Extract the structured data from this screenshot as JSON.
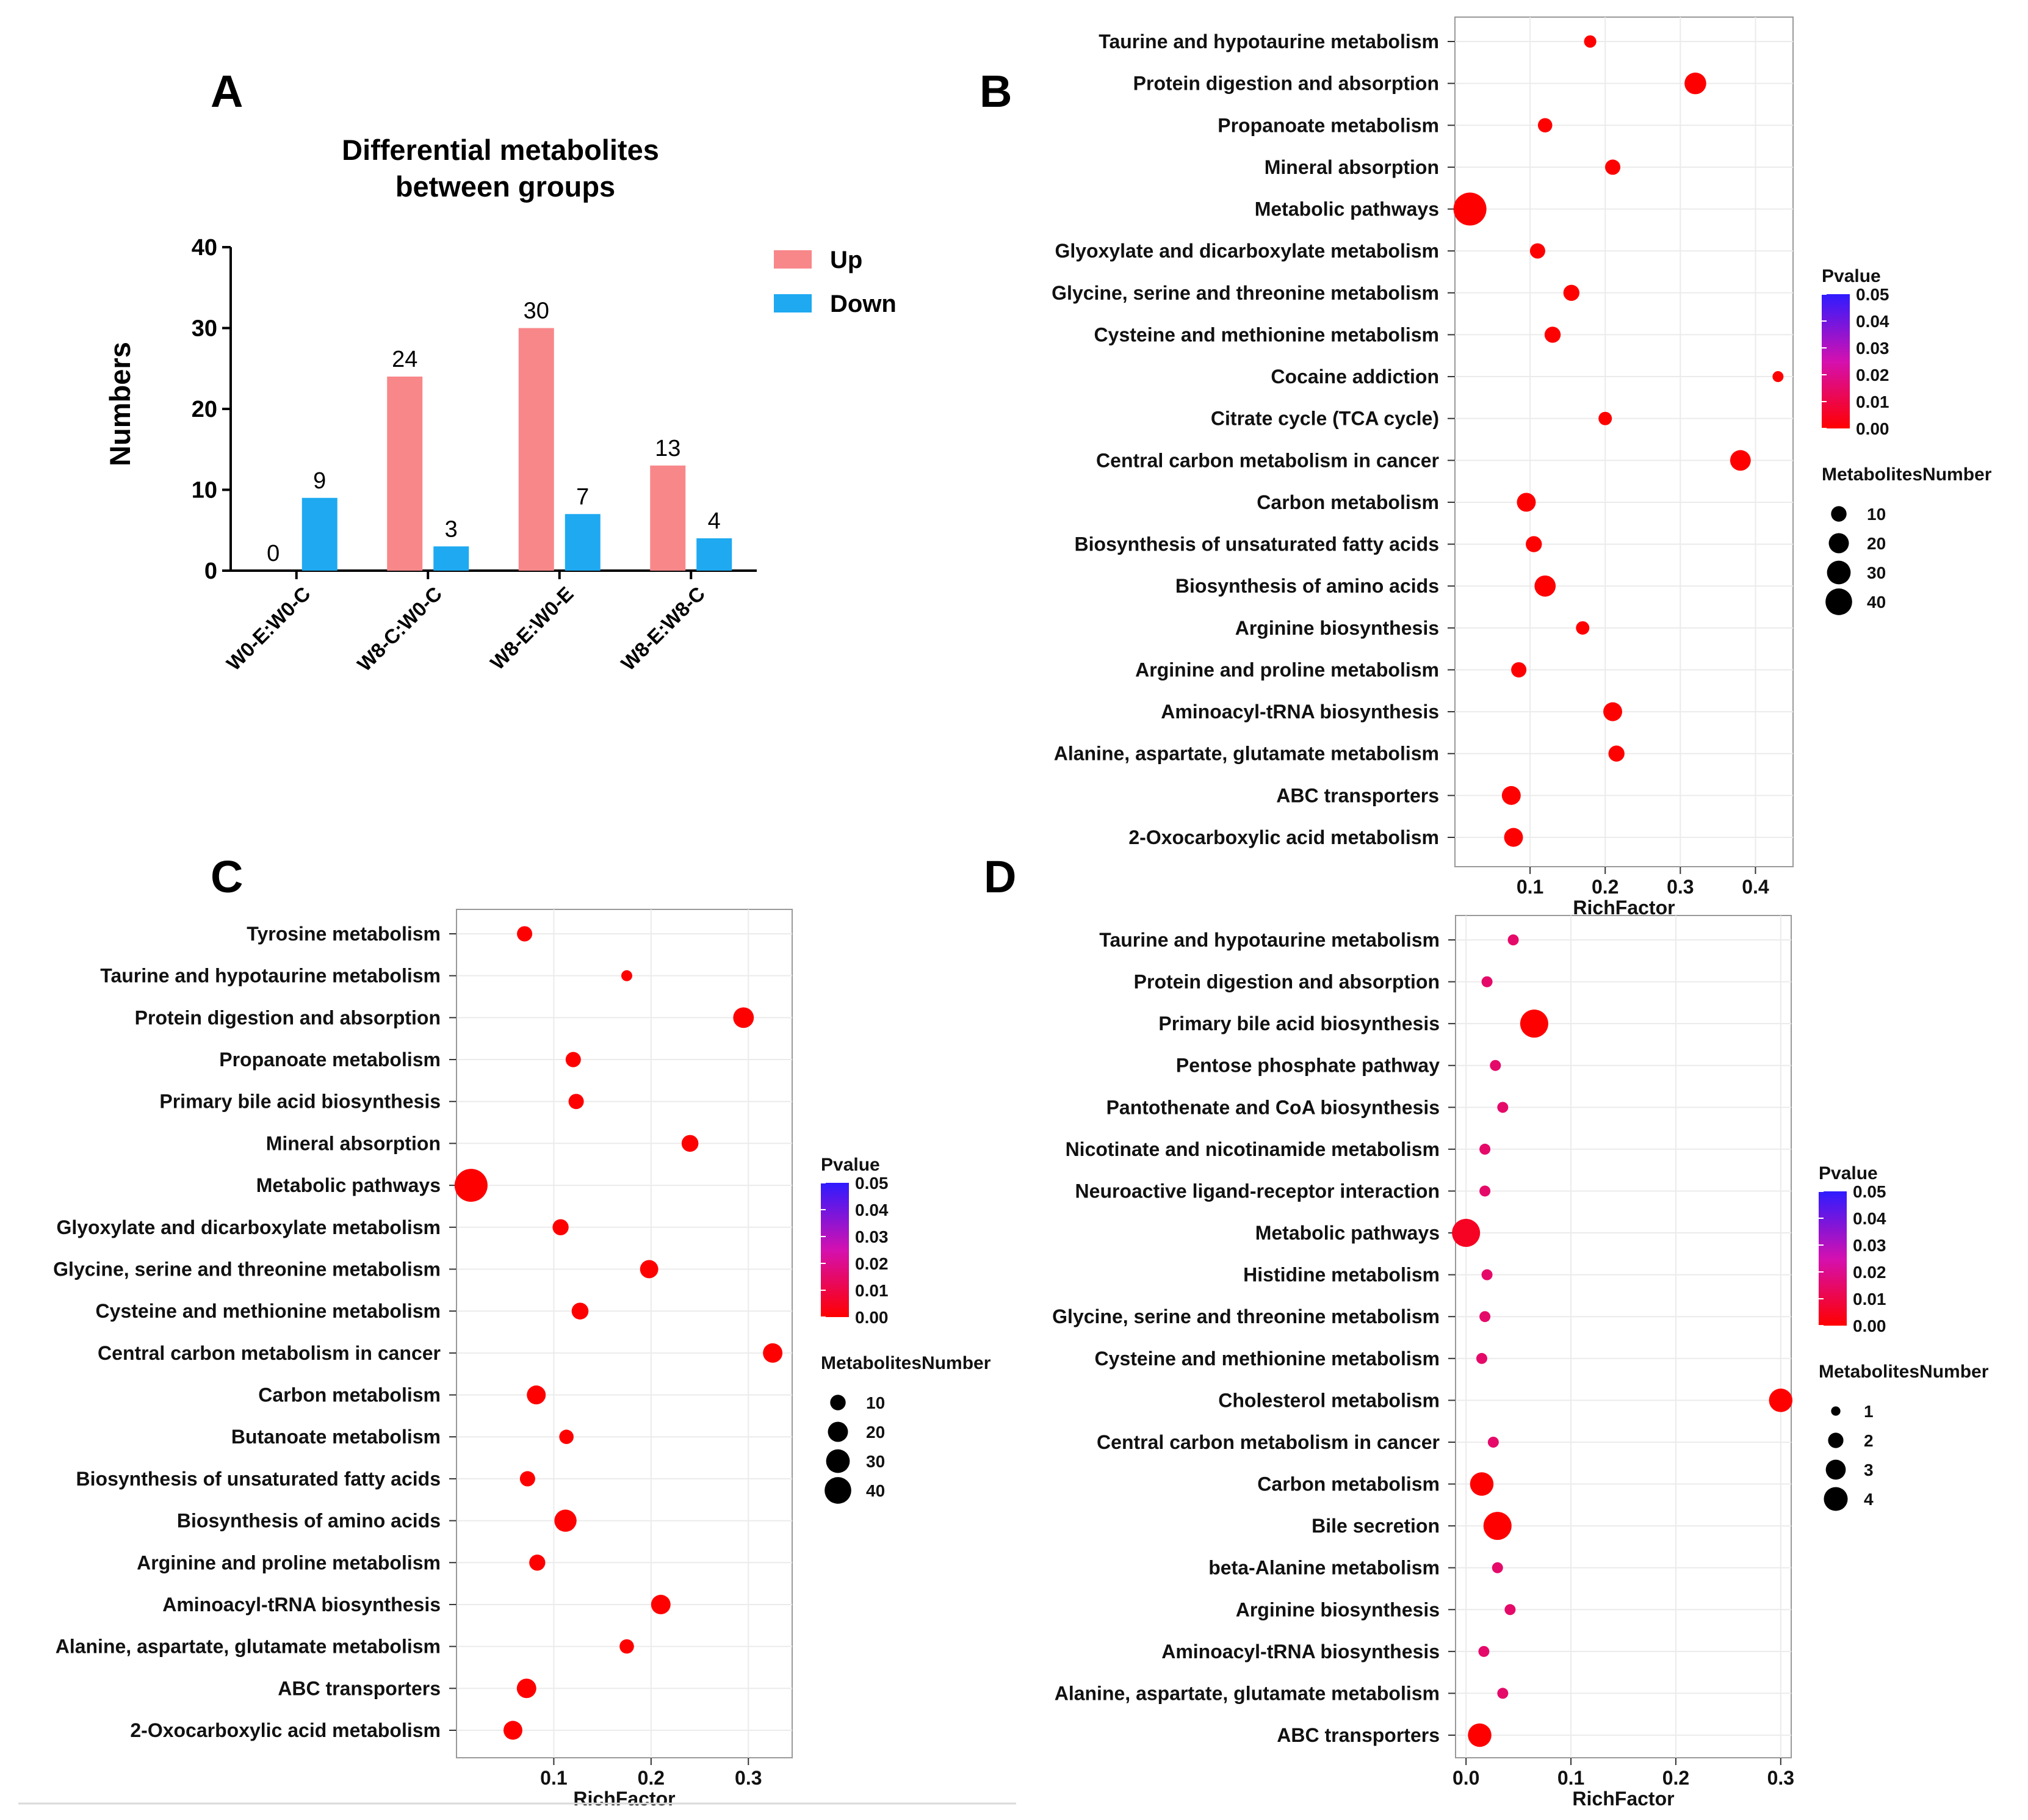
{
  "figure": {
    "panel_labels": [
      "A",
      "B",
      "C",
      "D"
    ],
    "colors": {
      "up": "#F8878A",
      "down": "#1EA9F1",
      "p_low": "#FF0000",
      "p_mid": "#E0149A",
      "p_high": "#2F1BFF",
      "grid": "#EBEBEB",
      "border": "#999999"
    }
  },
  "chart_data": [
    {
      "panel": "A",
      "type": "bar",
      "title_lines": [
        "Differential metabolites",
        "between groups"
      ],
      "ylabel": "Numbers",
      "xlabel": "",
      "ylim": [
        0,
        40
      ],
      "yticks": [
        0,
        10,
        20,
        30,
        40
      ],
      "categories": [
        "W0-E:W0-C",
        "W8-C:W0-C",
        "W8-E:W0-E",
        "W8-E:W8-C"
      ],
      "series": [
        {
          "name": "Up",
          "values": [
            0,
            24,
            30,
            13
          ]
        },
        {
          "name": "Down",
          "values": [
            9,
            3,
            7,
            4
          ]
        }
      ],
      "legend_position": "top-right"
    },
    {
      "panel": "B",
      "type": "scatter",
      "xlabel": "RichFactor",
      "xlim": [
        0,
        0.45
      ],
      "xticks": [
        0.1,
        0.2,
        0.3,
        0.4
      ],
      "xtick_labels": [
        "0.1",
        "0.2",
        "0.3",
        "0.4"
      ],
      "pathways": [
        {
          "name": "Taurine and hypotaurine metabolism",
          "rich": 0.18,
          "count": 3,
          "p": 0.0
        },
        {
          "name": "Protein digestion and absorption",
          "rich": 0.32,
          "count": 16,
          "p": 0.0
        },
        {
          "name": "Propanoate metabolism",
          "rich": 0.12,
          "count": 5,
          "p": 0.0
        },
        {
          "name": "Mineral absorption",
          "rich": 0.21,
          "count": 6,
          "p": 0.0
        },
        {
          "name": "Metabolic pathways",
          "rich": 0.02,
          "count": 45,
          "p": 0.0
        },
        {
          "name": "Glyoxylate and dicarboxylate metabolism",
          "rich": 0.11,
          "count": 6,
          "p": 0.0
        },
        {
          "name": "Glycine, serine and threonine metabolism",
          "rich": 0.155,
          "count": 7,
          "p": 0.0
        },
        {
          "name": "Cysteine and methionine metabolism",
          "rich": 0.13,
          "count": 7,
          "p": 0.0
        },
        {
          "name": "Cocaine addiction",
          "rich": 0.43,
          "count": 2,
          "p": 0.0
        },
        {
          "name": "Citrate cycle (TCA cycle)",
          "rich": 0.2,
          "count": 4,
          "p": 0.0
        },
        {
          "name": "Central carbon metabolism in cancer",
          "rich": 0.38,
          "count": 14,
          "p": 0.0
        },
        {
          "name": "Carbon metabolism",
          "rich": 0.095,
          "count": 11,
          "p": 0.0
        },
        {
          "name": "Biosynthesis of unsaturated fatty acids",
          "rich": 0.105,
          "count": 7,
          "p": 0.0
        },
        {
          "name": "Biosynthesis of amino acids",
          "rich": 0.12,
          "count": 15,
          "p": 0.0
        },
        {
          "name": "Arginine biosynthesis",
          "rich": 0.17,
          "count": 4,
          "p": 0.0
        },
        {
          "name": "Arginine and proline metabolism",
          "rich": 0.085,
          "count": 6,
          "p": 0.0
        },
        {
          "name": "Aminoacyl-tRNA biosynthesis",
          "rich": 0.21,
          "count": 11,
          "p": 0.0
        },
        {
          "name": "Alanine, aspartate, glutamate metabolism",
          "rich": 0.215,
          "count": 7,
          "p": 0.0
        },
        {
          "name": "ABC transporters",
          "rich": 0.075,
          "count": 11,
          "p": 0.0
        },
        {
          "name": "2-Oxocarboxylic acid metabolism",
          "rich": 0.078,
          "count": 11,
          "p": 0.0
        }
      ],
      "color_legend": {
        "title": "Pvalue",
        "ticks": [
          "0.05",
          "0.04",
          "0.03",
          "0.02",
          "0.01",
          "0.00"
        ]
      },
      "size_legend": {
        "title": "MetabolitesNumber",
        "values": [
          10,
          20,
          30,
          40
        ]
      }
    },
    {
      "panel": "C",
      "type": "scatter",
      "xlabel": "RichFactor",
      "xlim": [
        0.0,
        0.345
      ],
      "xticks": [
        0.1,
        0.2,
        0.3
      ],
      "xtick_labels": [
        "0.1",
        "0.2",
        "0.3"
      ],
      "pathways": [
        {
          "name": "Tyrosine metabolism",
          "rich": 0.07,
          "count": 6,
          "p": 0.0
        },
        {
          "name": "Taurine and hypotaurine metabolism",
          "rich": 0.175,
          "count": 2,
          "p": 0.0
        },
        {
          "name": "Protein digestion and absorption",
          "rich": 0.295,
          "count": 14,
          "p": 0.0
        },
        {
          "name": "Propanoate metabolism",
          "rich": 0.12,
          "count": 6,
          "p": 0.0
        },
        {
          "name": "Primary bile acid biosynthesis",
          "rich": 0.123,
          "count": 6,
          "p": 0.0
        },
        {
          "name": "Mineral absorption",
          "rich": 0.24,
          "count": 8,
          "p": 0.0
        },
        {
          "name": "Metabolic pathways",
          "rich": 0.015,
          "count": 45,
          "p": 0.0
        },
        {
          "name": "Glyoxylate and dicarboxylate metabolism",
          "rich": 0.107,
          "count": 7,
          "p": 0.0
        },
        {
          "name": "Glycine, serine and threonine metabolism",
          "rich": 0.198,
          "count": 10,
          "p": 0.0
        },
        {
          "name": "Cysteine and methionine metabolism",
          "rich": 0.127,
          "count": 8,
          "p": 0.0
        },
        {
          "name": "Central carbon metabolism in cancer",
          "rich": 0.325,
          "count": 12,
          "p": 0.0
        },
        {
          "name": "Carbon metabolism",
          "rich": 0.082,
          "count": 11,
          "p": 0.0
        },
        {
          "name": "Butanoate metabolism",
          "rich": 0.113,
          "count": 5,
          "p": 0.0
        },
        {
          "name": "Biosynthesis of unsaturated fatty acids",
          "rich": 0.073,
          "count": 6,
          "p": 0.0
        },
        {
          "name": "Biosynthesis of amino acids",
          "rich": 0.112,
          "count": 17,
          "p": 0.0
        },
        {
          "name": "Arginine and proline metabolism",
          "rich": 0.083,
          "count": 7,
          "p": 0.0
        },
        {
          "name": "Aminoacyl-tRNA biosynthesis",
          "rich": 0.21,
          "count": 12,
          "p": 0.0
        },
        {
          "name": "Alanine, aspartate, glutamate metabolism",
          "rich": 0.175,
          "count": 5,
          "p": 0.0
        },
        {
          "name": "ABC transporters",
          "rich": 0.072,
          "count": 12,
          "p": 0.0
        },
        {
          "name": "2-Oxocarboxylic acid metabolism",
          "rich": 0.058,
          "count": 11,
          "p": 0.0
        }
      ],
      "color_legend": {
        "title": "Pvalue",
        "ticks": [
          "0.05",
          "0.04",
          "0.03",
          "0.02",
          "0.01",
          "0.00"
        ]
      },
      "size_legend": {
        "title": "MetabolitesNumber",
        "values": [
          10,
          20,
          30,
          40
        ]
      }
    },
    {
      "panel": "D",
      "type": "scatter",
      "xlabel": "RichFactor",
      "xlim": [
        -0.01,
        0.31
      ],
      "xticks": [
        0.0,
        0.1,
        0.2,
        0.3
      ],
      "xtick_labels": [
        "0.0",
        "0.1",
        "0.2",
        "0.3"
      ],
      "pathways": [
        {
          "name": "Taurine and hypotaurine metabolism",
          "rich": 0.045,
          "count": 1,
          "p": 0.015
        },
        {
          "name": "Protein digestion and absorption",
          "rich": 0.02,
          "count": 1,
          "p": 0.015
        },
        {
          "name": "Primary bile acid biosynthesis",
          "rich": 0.065,
          "count": 4,
          "p": 0.0
        },
        {
          "name": "Pentose phosphate pathway",
          "rich": 0.028,
          "count": 1,
          "p": 0.015
        },
        {
          "name": "Pantothenate and CoA biosynthesis",
          "rich": 0.035,
          "count": 1,
          "p": 0.015
        },
        {
          "name": "Nicotinate and nicotinamide metabolism",
          "rich": 0.018,
          "count": 1,
          "p": 0.015
        },
        {
          "name": "Neuroactive ligand-receptor interaction",
          "rich": 0.018,
          "count": 1,
          "p": 0.015
        },
        {
          "name": "Metabolic pathways",
          "rich": 0.0,
          "count": 4,
          "p": 0.005
        },
        {
          "name": "Histidine metabolism",
          "rich": 0.02,
          "count": 1,
          "p": 0.015
        },
        {
          "name": "Glycine, serine and threonine metabolism",
          "rich": 0.018,
          "count": 1,
          "p": 0.015
        },
        {
          "name": "Cysteine and methionine metabolism",
          "rich": 0.015,
          "count": 1,
          "p": 0.015
        },
        {
          "name": "Cholesterol metabolism",
          "rich": 0.3,
          "count": 3,
          "p": 0.0
        },
        {
          "name": "Central carbon metabolism in cancer",
          "rich": 0.026,
          "count": 1,
          "p": 0.015
        },
        {
          "name": "Carbon metabolism",
          "rich": 0.015,
          "count": 3,
          "p": 0.0
        },
        {
          "name": "Bile secretion",
          "rich": 0.03,
          "count": 4,
          "p": 0.0
        },
        {
          "name": "beta-Alanine metabolism",
          "rich": 0.03,
          "count": 1,
          "p": 0.015
        },
        {
          "name": "Arginine biosynthesis",
          "rich": 0.042,
          "count": 1,
          "p": 0.015
        },
        {
          "name": "Aminoacyl-tRNA biosynthesis",
          "rich": 0.017,
          "count": 1,
          "p": 0.015
        },
        {
          "name": "Alanine, aspartate, glutamate metabolism",
          "rich": 0.035,
          "count": 1,
          "p": 0.015
        },
        {
          "name": "ABC transporters",
          "rich": 0.013,
          "count": 3,
          "p": 0.0
        }
      ],
      "color_legend": {
        "title": "Pvalue",
        "ticks": [
          "0.05",
          "0.04",
          "0.03",
          "0.02",
          "0.01",
          "0.00"
        ]
      },
      "size_legend": {
        "title": "MetabolitesNumber",
        "values": [
          1,
          2,
          3,
          4
        ]
      }
    }
  ]
}
